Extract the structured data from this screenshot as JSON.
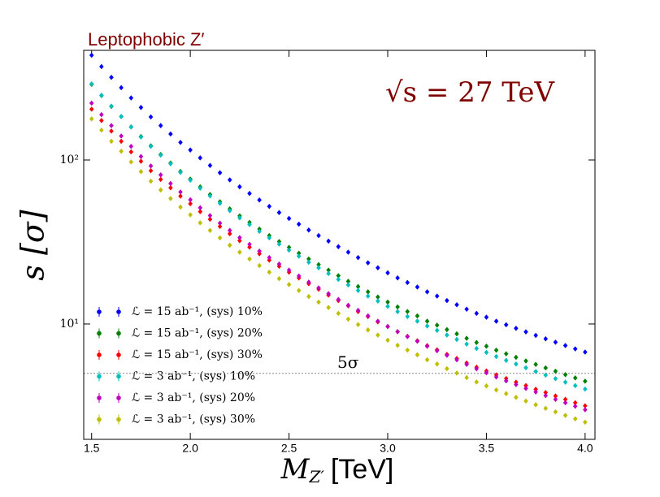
{
  "chart_data": {
    "type": "scatter",
    "title": "Leptophobic Z′",
    "annotation": "√s = 27 TeV",
    "xlabel": {
      "symbol": "M",
      "subscript": "Z′",
      "unit": "[TeV]"
    },
    "ylabel": "s [σ]",
    "hline": {
      "value": 5,
      "label": "5σ"
    },
    "log_y": true,
    "legend": "lower left",
    "xlim": [
      1.46,
      4.05
    ],
    "ylim": [
      1.98,
      466
    ],
    "xticks": [
      1.5,
      {
        "value": 2,
        "label": "2.0"
      },
      2.5,
      {
        "value": 3,
        "label": "3.0"
      },
      3.5,
      {
        "value": 4,
        "label": "4.0"
      }
    ],
    "yticks": [
      {
        "value": 10,
        "label": "10¹"
      },
      {
        "value": 100,
        "label": "10²"
      }
    ],
    "x": [
      1.5,
      1.55,
      1.6,
      1.65,
      1.7,
      1.75,
      1.8,
      1.85,
      1.9,
      1.95,
      2.0,
      2.05,
      2.1,
      2.15,
      2.2,
      2.25,
      2.3,
      2.35,
      2.4,
      2.45,
      2.5,
      2.55,
      2.6,
      2.65,
      2.7,
      2.75,
      2.8,
      2.85,
      2.9,
      2.95,
      3.0,
      3.05,
      3.1,
      3.15,
      3.2,
      3.25,
      3.3,
      3.35,
      3.4,
      3.45,
      3.5,
      3.55,
      3.6,
      3.65,
      3.7,
      3.75,
      3.8,
      3.85,
      3.9,
      3.95,
      4.0
    ],
    "series": [
      {
        "name": "ℒ = 15 ab⁻¹, (sys) 10%",
        "color": "#0000ff",
        "values": [
          435,
          371,
          319,
          276,
          239,
          209,
          183,
          162,
          144,
          128,
          115,
          103,
          92.6,
          83.6,
          75.6,
          68.6,
          62.5,
          57.0,
          52.1,
          47.8,
          44.0,
          40.6,
          37.4,
          34.6,
          32.0,
          29.6,
          27.4,
          25.4,
          23.6,
          22.0,
          20.5,
          19.1,
          17.9,
          16.8,
          15.7,
          14.8,
          13.9,
          13.1,
          12.3,
          11.6,
          11.0,
          10.4,
          9.89,
          9.41,
          8.95,
          8.52,
          8.12,
          7.74,
          7.39,
          7.05,
          6.74
        ]
      },
      {
        "name": "ℒ = 15 ab⁻¹, (sys) 20%",
        "color": "#008000",
        "values": [
          289,
          247,
          212,
          184,
          159,
          139,
          122,
          108,
          95.8,
          85.1,
          76.5,
          68.5,
          61.6,
          55.6,
          50.3,
          45.6,
          41.6,
          37.9,
          34.6,
          31.8,
          29.3,
          27.0,
          24.9,
          23.0,
          21.3,
          19.7,
          18.2,
          16.9,
          15.7,
          14.6,
          13.6,
          12.7,
          11.9,
          11.2,
          10.4,
          9.84,
          9.24,
          8.71,
          8.18,
          7.71,
          7.32,
          6.92,
          6.58,
          6.26,
          5.95,
          5.67,
          5.4,
          5.15,
          4.91,
          4.69,
          4.48
        ]
      },
      {
        "name": "ℒ = 15 ab⁻¹, (sys) 30%",
        "color": "#ff0000",
        "values": [
          204,
          174,
          150,
          130,
          112,
          98.2,
          86.0,
          76.1,
          67.7,
          60.2,
          54.1,
          48.4,
          43.5,
          39.3,
          35.5,
          32.2,
          29.4,
          26.8,
          24.5,
          22.5,
          20.7,
          19.1,
          17.6,
          16.3,
          15.0,
          13.9,
          12.9,
          11.9,
          11.1,
          10.3,
          9.64,
          8.98,
          8.41,
          7.9,
          7.38,
          6.96,
          6.53,
          6.16,
          5.78,
          5.45,
          5.17,
          4.89,
          4.65,
          4.42,
          4.21,
          4.0,
          3.82,
          3.64,
          3.47,
          3.31,
          3.17
        ]
      },
      {
        "name": "ℒ = 3 ab⁻¹, (sys) 10%",
        "color": "#00bfbf",
        "values": [
          291,
          248,
          213,
          184,
          159,
          138,
          121,
          107,
          94.8,
          84.0,
          75.3,
          67.3,
          60.4,
          54.4,
          49.1,
          44.4,
          40.4,
          36.7,
          33.5,
          30.7,
          28.2,
          25.9,
          23.8,
          22.0,
          20.3,
          18.7,
          17.3,
          16.0,
          14.8,
          13.8,
          12.8,
          11.9,
          11.1,
          10.4,
          9.72,
          9.14,
          8.56,
          8.05,
          7.54,
          7.09,
          6.71,
          6.33,
          6.0,
          5.7,
          5.41,
          5.13,
          4.88,
          4.64,
          4.42,
          4.21,
          4.01
        ]
      },
      {
        "name": "ℒ = 3 ab⁻¹, (sys) 20%",
        "color": "#bf00bf",
        "values": [
          222,
          189,
          162,
          140,
          121,
          105,
          91.9,
          81.1,
          71.9,
          63.8,
          57.2,
          51.1,
          45.8,
          41.2,
          37.2,
          33.6,
          30.6,
          27.8,
          25.4,
          23.2,
          21.3,
          19.6,
          18.0,
          16.6,
          15.3,
          14.1,
          13.0,
          12.1,
          11.2,
          10.4,
          9.66,
          8.97,
          8.38,
          7.85,
          7.31,
          6.87,
          6.44,
          6.05,
          5.67,
          5.33,
          5.04,
          4.75,
          4.5,
          4.27,
          4.05,
          3.85,
          3.66,
          3.47,
          3.31,
          3.15,
          3.0
        ]
      },
      {
        "name": "ℒ = 3 ab⁻¹, (sys) 30%",
        "color": "#bfbf00",
        "values": [
          178,
          152,
          130,
          113,
          97.3,
          84.9,
          74.2,
          65.6,
          58.2,
          51.6,
          46.3,
          41.4,
          37.2,
          33.5,
          30.2,
          27.4,
          24.9,
          22.7,
          20.7,
          18.9,
          17.4,
          16.0,
          14.7,
          13.6,
          12.6,
          11.6,
          10.7,
          9.92,
          9.2,
          8.56,
          7.96,
          7.41,
          6.93,
          6.49,
          6.05,
          5.7,
          5.34,
          5.02,
          4.71,
          4.43,
          4.19,
          3.96,
          3.76,
          3.57,
          3.39,
          3.22,
          3.06,
          2.91,
          2.77,
          2.64,
          2.52
        ]
      }
    ]
  }
}
